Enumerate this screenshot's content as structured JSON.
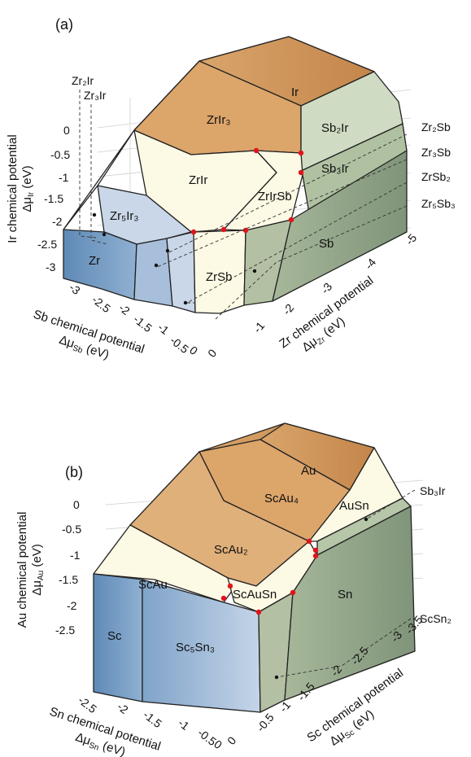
{
  "panel_a": {
    "tag": "(a)",
    "regions": {
      "ir": "Ir",
      "zrir3": "ZrIr3",
      "sb2ir": "Sb2Ir",
      "zrir": "ZrIr",
      "zririsb": "ZrIrSb",
      "sb3ir": "Sb3Ir",
      "zr5ir3": "Zr5Ir3",
      "zr": "Zr",
      "zrsb": "ZrSb",
      "sb": "Sb"
    },
    "side_labels": {
      "zr2ir": "Zr2Ir",
      "zr3ir": "Zr3Ir",
      "zr2sb": "Zr2Sb",
      "zr3sb": "Zr3Sb",
      "zrsb2": "ZrSb2",
      "zr5sb3": "Zr5Sb3"
    },
    "vertical_axis": {
      "title": "Ir chemical potential",
      "symbol": "Δμ",
      "sub": "Ir",
      "unit": " (eV)",
      "ticks": [
        "0",
        "-0.5",
        "-1",
        "-1.5",
        "-2",
        "-2.5",
        "-3"
      ]
    },
    "left_axis": {
      "title": "Sb chemical potential",
      "symbol": "Δμ",
      "sub": "Sb",
      "unit": " (eV)",
      "ticks": [
        "-3",
        "-2.5",
        "-2",
        "-1.5",
        "-1",
        "-0.5",
        "0"
      ]
    },
    "right_axis": {
      "title": "Zr chemical potential",
      "symbol": "Δμ",
      "sub": "Zr",
      "unit": " (eV)",
      "ticks": [
        "0",
        "-1",
        "-2",
        "-3",
        "-4",
        "-5"
      ]
    }
  },
  "panel_b": {
    "tag": "(b)",
    "regions": {
      "au": "Au",
      "scau4": "ScAu4",
      "ausn": "AuSn",
      "scau2": "ScAu2",
      "scau": "ScAu",
      "scausn": "ScAuSn",
      "sn": "Sn",
      "sc": "Sc",
      "sc5sn3": "Sc5Sn3"
    },
    "side_labels": {
      "sb3ir": "Sb3Ir",
      "scsn2": "ScSn2"
    },
    "vertical_axis": {
      "title": "Au chemical potential",
      "symbol": "Δμ",
      "sub": "Au",
      "unit": " (eV)",
      "ticks": [
        "0",
        "-0.5",
        "-1",
        "-1.5",
        "-2",
        "-2.5"
      ]
    },
    "left_axis": {
      "title": "Sn chemical potential",
      "symbol": "Δμ",
      "sub": "Sn",
      "unit": " (eV)",
      "ticks": [
        "-2.5",
        "-2",
        "-1.5",
        "-1",
        "-0.5",
        "0"
      ]
    },
    "right_axis": {
      "title": "Sc chemical potential",
      "symbol": "Δμ",
      "sub": "Sc",
      "unit": " (eV)",
      "ticks": [
        "0",
        "-0.5",
        "-1",
        "-1.5",
        "-2",
        "-2.5",
        "-3",
        "-3.5"
      ]
    }
  },
  "colors": {
    "metal_orange": "#c98c4f",
    "compound_orange": "#dda970",
    "cream": "#fcf9e4",
    "light_green": "#cfdcc3",
    "mid_green": "#a9b99a",
    "dark_green": "#8a9c80",
    "blue_dark": "#6e96bf",
    "blue_mid": "#a7bfda",
    "blue_light": "#c9d7e8",
    "red_point": "#e0141b"
  }
}
